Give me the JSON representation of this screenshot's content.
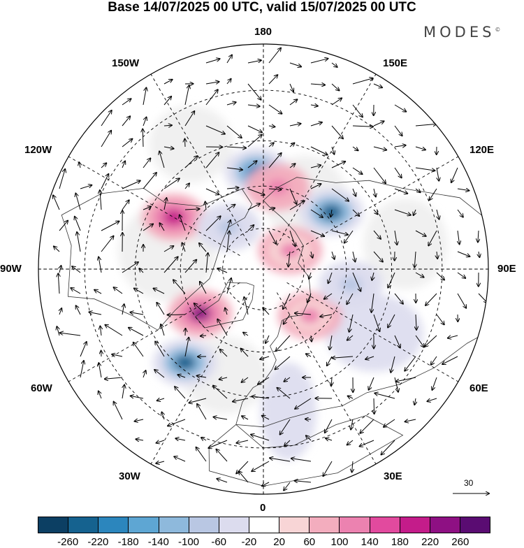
{
  "title": "Base 14/07/2025 00 UTC, valid 15/07/2025 00 UTC",
  "brand": "MODES",
  "brand_mark": "©",
  "longitude_labels": {
    "top": "180",
    "upper_left": "150W",
    "upper_right": "150E",
    "left_upper": "120W",
    "right_upper": "120E",
    "left": "90W",
    "right": "90E",
    "left_lower": "60W",
    "right_lower": "60E",
    "lower_left": "30W",
    "lower_right": "30E",
    "bottom": "0"
  },
  "reference_arrow": {
    "label": "30"
  },
  "colorbar": {
    "colors": [
      "#0c3f63",
      "#15628f",
      "#2c86bd",
      "#5ea6d3",
      "#8eb9dc",
      "#b9c7e3",
      "#dcdcee",
      "#ffffff",
      "#f8d5d6",
      "#f3adbe",
      "#ec82b0",
      "#e24a9e",
      "#c41c8a",
      "#8e1083",
      "#5a0c72"
    ],
    "labels": [
      "-260",
      "-220",
      "-180",
      "-140",
      "-100",
      "-60",
      "-20",
      "20",
      "60",
      "100",
      "140",
      "180",
      "220",
      "260"
    ]
  },
  "map": {
    "projection": "north-polar-stereographic",
    "anomaly_centers": [
      {
        "lon": -176,
        "lat": 55,
        "value": -200,
        "label": "negative"
      },
      {
        "lon": 130,
        "lat": 58,
        "value": -230,
        "label": "negative"
      },
      {
        "lon": -120,
        "lat": 53,
        "value": 200,
        "label": "positive"
      },
      {
        "lon": -55,
        "lat": 62,
        "value": 240,
        "label": "positive"
      },
      {
        "lon": 170,
        "lat": 60,
        "value": 130,
        "label": "positive"
      },
      {
        "lon": 125,
        "lat": 78,
        "value": 100,
        "label": "positive"
      },
      {
        "lon": 45,
        "lat": 66,
        "value": 100,
        "label": "positive"
      },
      {
        "lon": -40,
        "lat": 47,
        "value": -240,
        "label": "negative"
      },
      {
        "lon": -140,
        "lat": 70,
        "value": -100,
        "label": "negative"
      },
      {
        "lon": 80,
        "lat": 58,
        "value": -80,
        "label": "negative"
      }
    ]
  }
}
